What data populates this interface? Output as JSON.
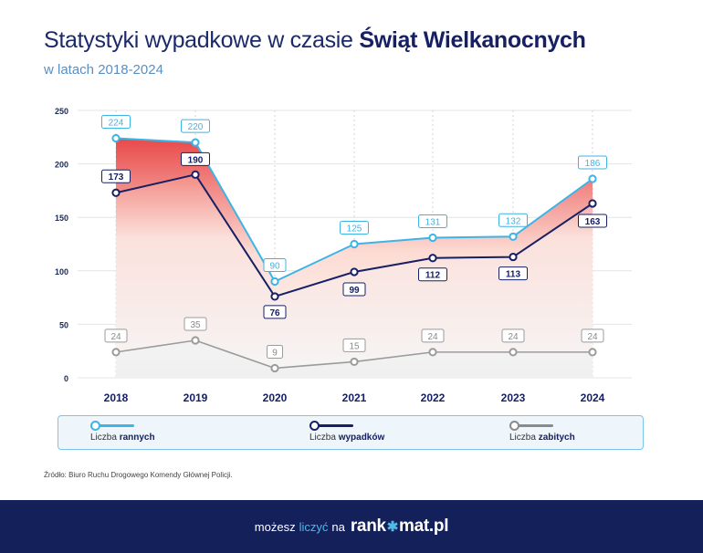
{
  "title": {
    "prefix": "Statystyki wypadkowe w czasie ",
    "bold": "Świąt Wielkanocnych"
  },
  "subtitle": "w latach 2018-2024",
  "chart_data": {
    "type": "line",
    "x": [
      "2018",
      "2019",
      "2020",
      "2021",
      "2022",
      "2023",
      "2024"
    ],
    "ylim": [
      0,
      250
    ],
    "yticks": [
      "0",
      "50",
      "100",
      "150",
      "200",
      "250"
    ],
    "grid": true,
    "series": [
      {
        "key": "rannych",
        "name": "Liczba rannych",
        "color": "#3cb4e6",
        "values": [
          224,
          220,
          90,
          125,
          131,
          132,
          186
        ]
      },
      {
        "key": "wypadkow",
        "name": "Liczba wypadków",
        "color": "#162064",
        "values": [
          173,
          190,
          76,
          99,
          112,
          113,
          163
        ]
      },
      {
        "key": "zabitych",
        "name": "Liczba zabitych",
        "color": "#9b9b9b",
        "values": [
          24,
          35,
          9,
          15,
          24,
          24,
          24
        ]
      }
    ]
  },
  "legend": [
    {
      "prefix": "Liczba ",
      "bold": "rannych",
      "color": "#3cb4e6"
    },
    {
      "prefix": "Liczba ",
      "bold": "wypadków",
      "color": "#162064"
    },
    {
      "prefix": "Liczba ",
      "bold": "zabitych",
      "color": "#8a8a8a"
    }
  ],
  "source": "Źródło: Biuro Ruchu Drogowego Komendy Głównej Policji.",
  "footer": {
    "prefix": "możesz",
    "highlight": "liczyć",
    "suffix": "na",
    "brand_a": "rank",
    "brand_star": "✱",
    "brand_b": "mat.pl"
  }
}
